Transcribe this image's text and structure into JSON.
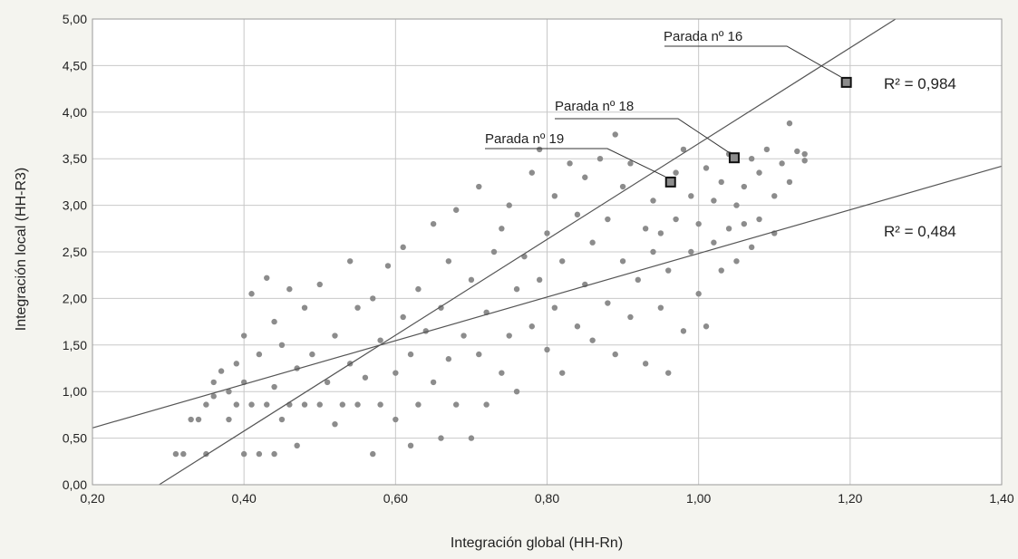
{
  "chart_data": {
    "type": "scatter",
    "title": "",
    "xlabel": "Integración global (HH-Rn)",
    "ylabel": "Integración local (HH-R3)",
    "xlim": [
      0.2,
      1.4
    ],
    "ylim": [
      0.0,
      5.0
    ],
    "x_ticks": [
      0.2,
      0.4,
      0.6,
      0.8,
      1.0,
      1.2,
      1.4
    ],
    "x_tick_labels": [
      "0,20",
      "0,40",
      "0,60",
      "0,80",
      "1,00",
      "1,20",
      "1,40"
    ],
    "y_ticks": [
      0,
      0.5,
      1.0,
      1.5,
      2.0,
      2.5,
      3.0,
      3.5,
      4.0,
      4.5,
      5.0
    ],
    "y_tick_labels": [
      "0,00",
      "0,50",
      "1,00",
      "1,50",
      "2,00",
      "2,50",
      "3,00",
      "3,50",
      "4,00",
      "4,50",
      "5,00"
    ],
    "grid": true,
    "colors": {
      "points": "#8c8c8c",
      "trend": "#555555",
      "grid": "#c8c8c8",
      "background": "#f4f4ef"
    },
    "series": [
      {
        "values_description_only": "",
        "points": [
          [
            0.31,
            0.33
          ],
          [
            0.32,
            0.33
          ],
          [
            0.33,
            0.7
          ],
          [
            0.34,
            0.7
          ],
          [
            0.35,
            0.33
          ],
          [
            0.35,
            0.86
          ],
          [
            0.36,
            0.95
          ],
          [
            0.36,
            1.1
          ],
          [
            0.37,
            1.22
          ],
          [
            0.38,
            0.7
          ],
          [
            0.38,
            1.0
          ],
          [
            0.39,
            0.86
          ],
          [
            0.39,
            1.3
          ],
          [
            0.4,
            0.33
          ],
          [
            0.4,
            1.1
          ],
          [
            0.4,
            1.6
          ],
          [
            0.41,
            0.86
          ],
          [
            0.41,
            2.05
          ],
          [
            0.42,
            0.33
          ],
          [
            0.42,
            1.4
          ],
          [
            0.43,
            0.86
          ],
          [
            0.43,
            2.22
          ],
          [
            0.44,
            0.33
          ],
          [
            0.44,
            1.05
          ],
          [
            0.44,
            1.75
          ],
          [
            0.45,
            0.7
          ],
          [
            0.45,
            1.5
          ],
          [
            0.46,
            0.86
          ],
          [
            0.46,
            2.1
          ],
          [
            0.47,
            0.42
          ],
          [
            0.47,
            1.25
          ],
          [
            0.48,
            0.86
          ],
          [
            0.48,
            1.9
          ],
          [
            0.49,
            1.4
          ],
          [
            0.5,
            0.86
          ],
          [
            0.5,
            2.15
          ],
          [
            0.51,
            1.1
          ],
          [
            0.52,
            0.65
          ],
          [
            0.52,
            1.6
          ],
          [
            0.53,
            0.86
          ],
          [
            0.54,
            1.3
          ],
          [
            0.54,
            2.4
          ],
          [
            0.55,
            0.86
          ],
          [
            0.55,
            1.9
          ],
          [
            0.56,
            1.15
          ],
          [
            0.57,
            0.33
          ],
          [
            0.57,
            2.0
          ],
          [
            0.58,
            0.86
          ],
          [
            0.58,
            1.55
          ],
          [
            0.59,
            2.35
          ],
          [
            0.6,
            0.7
          ],
          [
            0.6,
            1.2
          ],
          [
            0.61,
            1.8
          ],
          [
            0.61,
            2.55
          ],
          [
            0.62,
            0.42
          ],
          [
            0.62,
            1.4
          ],
          [
            0.63,
            0.86
          ],
          [
            0.63,
            2.1
          ],
          [
            0.64,
            1.65
          ],
          [
            0.65,
            2.8
          ],
          [
            0.65,
            1.1
          ],
          [
            0.66,
            0.5
          ],
          [
            0.66,
            1.9
          ],
          [
            0.67,
            1.35
          ],
          [
            0.67,
            2.4
          ],
          [
            0.68,
            0.86
          ],
          [
            0.68,
            2.95
          ],
          [
            0.69,
            1.6
          ],
          [
            0.7,
            0.5
          ],
          [
            0.7,
            2.2
          ],
          [
            0.71,
            1.4
          ],
          [
            0.71,
            3.2
          ],
          [
            0.72,
            1.85
          ],
          [
            0.72,
            0.86
          ],
          [
            0.73,
            2.5
          ],
          [
            0.74,
            1.2
          ],
          [
            0.74,
            2.75
          ],
          [
            0.75,
            1.6
          ],
          [
            0.75,
            3.0
          ],
          [
            0.76,
            2.1
          ],
          [
            0.76,
            1.0
          ],
          [
            0.77,
            2.45
          ],
          [
            0.78,
            1.7
          ],
          [
            0.78,
            3.35
          ],
          [
            0.79,
            2.2
          ],
          [
            0.79,
            3.6
          ],
          [
            0.8,
            1.45
          ],
          [
            0.8,
            2.7
          ],
          [
            0.81,
            1.9
          ],
          [
            0.81,
            3.1
          ],
          [
            0.82,
            1.2
          ],
          [
            0.82,
            2.4
          ],
          [
            0.83,
            3.45
          ],
          [
            0.84,
            1.7
          ],
          [
            0.84,
            2.9
          ],
          [
            0.85,
            2.15
          ],
          [
            0.85,
            3.3
          ],
          [
            0.86,
            1.55
          ],
          [
            0.86,
            2.6
          ],
          [
            0.87,
            3.5
          ],
          [
            0.88,
            1.95
          ],
          [
            0.88,
            2.85
          ],
          [
            0.89,
            3.76
          ],
          [
            0.89,
            1.4
          ],
          [
            0.9,
            2.4
          ],
          [
            0.9,
            3.2
          ],
          [
            0.91,
            1.8
          ],
          [
            0.91,
            3.45
          ],
          [
            0.92,
            2.2
          ],
          [
            0.93,
            2.75
          ],
          [
            0.93,
            1.3
          ],
          [
            0.94,
            2.5
          ],
          [
            0.94,
            3.05
          ],
          [
            0.95,
            1.9
          ],
          [
            0.95,
            2.7
          ],
          [
            0.96,
            1.2
          ],
          [
            0.96,
            2.3
          ],
          [
            0.97,
            3.35
          ],
          [
            0.97,
            2.85
          ],
          [
            0.98,
            1.65
          ],
          [
            0.98,
            3.6
          ],
          [
            0.99,
            2.5
          ],
          [
            0.99,
            3.1
          ],
          [
            1.0,
            2.05
          ],
          [
            1.0,
            2.8
          ],
          [
            1.01,
            3.4
          ],
          [
            1.01,
            1.7
          ],
          [
            1.02,
            2.6
          ],
          [
            1.02,
            3.05
          ],
          [
            1.03,
            2.3
          ],
          [
            1.03,
            3.25
          ],
          [
            1.04,
            2.75
          ],
          [
            1.04,
            3.55
          ],
          [
            1.05,
            2.4
          ],
          [
            1.05,
            3.0
          ],
          [
            1.06,
            3.2
          ],
          [
            1.06,
            2.8
          ],
          [
            1.07,
            3.5
          ],
          [
            1.07,
            2.55
          ],
          [
            1.08,
            3.35
          ],
          [
            1.08,
            2.85
          ],
          [
            1.09,
            3.6
          ],
          [
            1.1,
            3.1
          ],
          [
            1.1,
            2.7
          ],
          [
            1.11,
            3.45
          ],
          [
            1.12,
            3.88
          ],
          [
            1.12,
            3.25
          ],
          [
            1.13,
            3.58
          ],
          [
            1.14,
            3.55
          ],
          [
            1.14,
            3.48
          ]
        ]
      }
    ],
    "highlighted_points": [
      {
        "label": "Parada nº 16",
        "x": 1.195,
        "y": 4.32
      },
      {
        "label": "Parada nº 18",
        "x": 1.047,
        "y": 3.51
      },
      {
        "label": "Parada nº 19",
        "x": 0.963,
        "y": 3.25
      }
    ],
    "trend_lines": [
      {
        "label": "R² = 0,984",
        "from": [
          0.288,
          0.0
        ],
        "to": [
          1.26,
          5.0
        ]
      },
      {
        "label": "R² = 0,484",
        "from": [
          0.2,
          0.61
        ],
        "to": [
          1.4,
          3.42
        ]
      }
    ]
  }
}
